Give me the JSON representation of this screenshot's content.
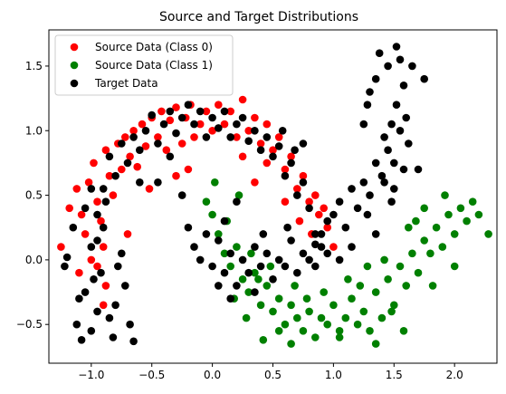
{
  "chart_data": {
    "type": "scatter",
    "title": "Source and Target Distributions",
    "xlabel": "",
    "ylabel": "",
    "xlim": [
      -1.35,
      2.35
    ],
    "ylim": [
      -0.8,
      1.78
    ],
    "xticks": [
      -1.0,
      -0.5,
      0.0,
      0.5,
      1.0,
      1.5,
      2.0
    ],
    "xtick_labels": [
      "−1.0",
      "−0.5",
      "0.0",
      "0.5",
      "1.0",
      "1.5",
      "2.0"
    ],
    "yticks": [
      -0.5,
      0.0,
      0.5,
      1.0,
      1.5
    ],
    "ytick_labels": [
      "−0.5",
      "0.0",
      "0.5",
      "1.0",
      "1.5"
    ],
    "grid": false,
    "legend_position": "top-left",
    "series": [
      {
        "name": "Source Data (Class 0)",
        "color": "#ff0000",
        "marker": "circle",
        "points": [
          [
            -1.25,
            0.1
          ],
          [
            -1.18,
            0.4
          ],
          [
            -1.12,
            0.55
          ],
          [
            -1.08,
            0.35
          ],
          [
            -1.05,
            0.2
          ],
          [
            -1.02,
            0.6
          ],
          [
            -0.98,
            0.75
          ],
          [
            -0.95,
            0.45
          ],
          [
            -0.92,
            0.3
          ],
          [
            -0.9,
            0.1
          ],
          [
            -0.88,
            0.85
          ],
          [
            -0.85,
            0.65
          ],
          [
            -0.82,
            0.5
          ],
          [
            -0.78,
            0.9
          ],
          [
            -0.75,
            0.7
          ],
          [
            -0.72,
            0.95
          ],
          [
            -0.68,
            0.8
          ],
          [
            -0.65,
            1.0
          ],
          [
            -0.62,
            0.72
          ],
          [
            -0.58,
            1.05
          ],
          [
            -0.55,
            0.88
          ],
          [
            -0.5,
            1.1
          ],
          [
            -0.45,
            0.95
          ],
          [
            -0.42,
            1.15
          ],
          [
            -0.38,
            0.85
          ],
          [
            -0.35,
            1.08
          ],
          [
            -0.3,
            1.18
          ],
          [
            -0.25,
            0.9
          ],
          [
            -0.22,
            1.1
          ],
          [
            -0.18,
            1.2
          ],
          [
            -0.15,
            0.95
          ],
          [
            -0.1,
            1.05
          ],
          [
            -0.05,
            1.15
          ],
          [
            0.0,
            1.0
          ],
          [
            0.05,
            1.2
          ],
          [
            0.1,
            1.05
          ],
          [
            0.15,
            1.15
          ],
          [
            0.2,
            0.95
          ],
          [
            0.25,
            1.24
          ],
          [
            0.3,
            1.0
          ],
          [
            0.35,
            1.1
          ],
          [
            0.4,
            0.9
          ],
          [
            0.45,
            1.05
          ],
          [
            0.5,
            0.85
          ],
          [
            0.55,
            0.95
          ],
          [
            0.6,
            0.7
          ],
          [
            0.65,
            0.8
          ],
          [
            0.7,
            0.55
          ],
          [
            0.75,
            0.65
          ],
          [
            0.8,
            0.45
          ],
          [
            0.85,
            0.5
          ],
          [
            0.88,
            0.35
          ],
          [
            0.92,
            0.4
          ],
          [
            0.95,
            0.25
          ],
          [
            1.0,
            0.1
          ],
          [
            -0.3,
            0.65
          ],
          [
            -0.2,
            0.7
          ],
          [
            0.45,
            0.75
          ],
          [
            0.72,
            0.3
          ],
          [
            -1.1,
            -0.1
          ],
          [
            -0.95,
            -0.05
          ],
          [
            -0.88,
            -0.2
          ],
          [
            -0.52,
            0.55
          ],
          [
            0.6,
            0.45
          ],
          [
            0.82,
            0.2
          ],
          [
            -1.0,
            0.0
          ],
          [
            -0.9,
            -0.35
          ],
          [
            -0.7,
            0.2
          ],
          [
            0.35,
            0.6
          ],
          [
            0.25,
            0.8
          ]
        ]
      },
      {
        "name": "Source Data (Class 1)",
        "color": "#008000",
        "marker": "circle",
        "points": [
          [
            -0.05,
            0.45
          ],
          [
            0.0,
            0.35
          ],
          [
            0.05,
            0.2
          ],
          [
            0.1,
            0.05
          ],
          [
            0.15,
            -0.05
          ],
          [
            0.2,
            0.1
          ],
          [
            0.25,
            -0.15
          ],
          [
            0.3,
            -0.25
          ],
          [
            0.35,
            -0.1
          ],
          [
            0.4,
            -0.35
          ],
          [
            0.45,
            -0.2
          ],
          [
            0.5,
            -0.4
          ],
          [
            0.55,
            -0.3
          ],
          [
            0.6,
            -0.5
          ],
          [
            0.65,
            -0.35
          ],
          [
            0.7,
            -0.45
          ],
          [
            0.75,
            -0.55
          ],
          [
            0.8,
            -0.4
          ],
          [
            0.85,
            -0.6
          ],
          [
            0.9,
            -0.45
          ],
          [
            0.95,
            -0.5
          ],
          [
            1.0,
            -0.35
          ],
          [
            1.05,
            -0.55
          ],
          [
            1.1,
            -0.45
          ],
          [
            1.15,
            -0.3
          ],
          [
            1.2,
            -0.5
          ],
          [
            1.25,
            -0.4
          ],
          [
            1.3,
            -0.55
          ],
          [
            1.35,
            -0.25
          ],
          [
            1.4,
            -0.45
          ],
          [
            1.45,
            -0.15
          ],
          [
            1.5,
            -0.35
          ],
          [
            1.55,
            -0.05
          ],
          [
            1.6,
            -0.2
          ],
          [
            1.65,
            0.05
          ],
          [
            1.7,
            -0.1
          ],
          [
            1.75,
            0.15
          ],
          [
            1.8,
            0.05
          ],
          [
            1.85,
            0.25
          ],
          [
            1.9,
            0.1
          ],
          [
            1.95,
            0.35
          ],
          [
            2.0,
            0.2
          ],
          [
            2.05,
            0.4
          ],
          [
            2.1,
            0.3
          ],
          [
            2.15,
            0.45
          ],
          [
            2.2,
            0.35
          ],
          [
            2.28,
            0.2
          ],
          [
            1.92,
            0.5
          ],
          [
            1.75,
            0.4
          ],
          [
            1.62,
            0.25
          ],
          [
            0.02,
            0.6
          ],
          [
            0.22,
            0.5
          ],
          [
            0.12,
            0.3
          ],
          [
            0.32,
            0.05
          ],
          [
            0.48,
            -0.05
          ],
          [
            0.68,
            -0.2
          ],
          [
            0.92,
            -0.25
          ],
          [
            1.12,
            -0.15
          ],
          [
            1.28,
            -0.05
          ],
          [
            1.42,
            0.0
          ],
          [
            0.42,
            -0.62
          ],
          [
            0.65,
            -0.65
          ],
          [
            1.35,
            -0.65
          ],
          [
            1.58,
            -0.55
          ],
          [
            1.05,
            -0.6
          ],
          [
            0.28,
            -0.45
          ],
          [
            0.55,
            -0.55
          ],
          [
            1.82,
            -0.2
          ],
          [
            2.0,
            -0.05
          ],
          [
            1.68,
            0.3
          ],
          [
            0.18,
            -0.3
          ],
          [
            0.38,
            -0.15
          ],
          [
            0.78,
            -0.3
          ],
          [
            1.22,
            -0.2
          ],
          [
            1.48,
            -0.4
          ]
        ]
      },
      {
        "name": "Target Data",
        "color": "#000000",
        "marker": "circle",
        "points": [
          [
            -1.22,
            -0.05
          ],
          [
            -1.2,
            0.02
          ],
          [
            -1.15,
            0.25
          ],
          [
            -1.12,
            -0.5
          ],
          [
            -1.08,
            -0.62
          ],
          [
            -1.1,
            -0.3
          ],
          [
            -1.05,
            -0.25
          ],
          [
            -1.0,
            -0.55
          ],
          [
            -0.98,
            -0.15
          ],
          [
            -0.95,
            -0.4
          ],
          [
            -0.92,
            -0.1
          ],
          [
            -0.9,
            0.25
          ],
          [
            -0.85,
            -0.45
          ],
          [
            -0.82,
            -0.6
          ],
          [
            -0.8,
            -0.35
          ],
          [
            -0.78,
            -0.05
          ],
          [
            -0.75,
            0.05
          ],
          [
            -0.72,
            -0.2
          ],
          [
            -0.68,
            -0.5
          ],
          [
            -0.65,
            -0.63
          ],
          [
            -1.05,
            0.4
          ],
          [
            -1.0,
            0.55
          ],
          [
            -0.95,
            0.15
          ],
          [
            -0.88,
            0.45
          ],
          [
            -0.85,
            0.8
          ],
          [
            -0.8,
            0.65
          ],
          [
            -0.75,
            0.9
          ],
          [
            -0.7,
            0.75
          ],
          [
            -0.65,
            0.95
          ],
          [
            -0.6,
            0.6
          ],
          [
            -0.55,
            1.0
          ],
          [
            -0.5,
            1.12
          ],
          [
            -0.45,
            0.9
          ],
          [
            -0.4,
            1.05
          ],
          [
            -0.35,
            1.15
          ],
          [
            -0.3,
            0.98
          ],
          [
            -0.25,
            1.1
          ],
          [
            -0.2,
            1.2
          ],
          [
            -0.15,
            1.05
          ],
          [
            -0.1,
            1.15
          ],
          [
            -0.05,
            0.95
          ],
          [
            0.0,
            1.1
          ],
          [
            0.05,
            1.02
          ],
          [
            0.1,
            1.15
          ],
          [
            0.15,
            0.95
          ],
          [
            0.2,
            1.05
          ],
          [
            0.25,
            1.1
          ],
          [
            0.3,
            0.92
          ],
          [
            0.35,
            1.0
          ],
          [
            0.4,
            0.85
          ],
          [
            0.45,
            0.95
          ],
          [
            0.5,
            0.8
          ],
          [
            0.55,
            0.88
          ],
          [
            0.6,
            0.65
          ],
          [
            0.65,
            0.75
          ],
          [
            0.7,
            0.5
          ],
          [
            0.75,
            0.6
          ],
          [
            0.8,
            0.4
          ],
          [
            0.85,
            0.2
          ],
          [
            0.9,
            0.1
          ],
          [
            -0.2,
            0.25
          ],
          [
            -0.15,
            0.1
          ],
          [
            -0.1,
            0.0
          ],
          [
            -0.05,
            0.2
          ],
          [
            0.0,
            -0.05
          ],
          [
            0.05,
            0.15
          ],
          [
            0.1,
            -0.1
          ],
          [
            0.15,
            0.05
          ],
          [
            0.2,
            -0.2
          ],
          [
            0.25,
            0.0
          ],
          [
            0.3,
            -0.1
          ],
          [
            0.35,
            0.1
          ],
          [
            0.4,
            -0.05
          ],
          [
            0.45,
            0.05
          ],
          [
            0.5,
            -0.15
          ],
          [
            0.55,
            0.0
          ],
          [
            0.6,
            -0.05
          ],
          [
            0.65,
            0.15
          ],
          [
            0.7,
            -0.1
          ],
          [
            0.75,
            0.05
          ],
          [
            0.8,
            0.0
          ],
          [
            0.85,
            0.12
          ],
          [
            0.9,
            0.2
          ],
          [
            0.95,
            0.3
          ],
          [
            1.0,
            0.35
          ],
          [
            1.05,
            0.45
          ],
          [
            1.1,
            0.25
          ],
          [
            1.15,
            0.55
          ],
          [
            1.2,
            0.4
          ],
          [
            1.25,
            0.6
          ],
          [
            1.3,
            0.5
          ],
          [
            1.35,
            0.75
          ],
          [
            1.4,
            0.65
          ],
          [
            1.42,
            0.95
          ],
          [
            1.45,
            0.85
          ],
          [
            1.48,
            1.05
          ],
          [
            1.5,
            0.75
          ],
          [
            1.52,
            1.2
          ],
          [
            1.55,
            1.0
          ],
          [
            1.58,
            1.35
          ],
          [
            1.6,
            1.1
          ],
          [
            1.62,
            0.9
          ],
          [
            1.55,
            1.55
          ],
          [
            1.52,
            1.65
          ],
          [
            1.45,
            1.5
          ],
          [
            1.38,
            1.6
          ],
          [
            1.35,
            1.4
          ],
          [
            1.3,
            1.3
          ],
          [
            1.28,
            1.2
          ],
          [
            1.25,
            1.05
          ],
          [
            1.42,
            0.6
          ],
          [
            1.5,
            0.55
          ],
          [
            1.58,
            0.7
          ],
          [
            1.48,
            0.45
          ],
          [
            1.65,
            1.5
          ],
          [
            1.7,
            0.7
          ],
          [
            1.75,
            1.4
          ],
          [
            1.35,
            0.2
          ],
          [
            1.28,
            0.35
          ],
          [
            1.15,
            0.1
          ],
          [
            1.05,
            0.0
          ],
          [
            0.95,
            0.05
          ],
          [
            -0.6,
            0.85
          ],
          [
            -0.45,
            0.6
          ],
          [
            -0.35,
            0.8
          ],
          [
            -0.9,
            0.55
          ],
          [
            -0.95,
            0.35
          ],
          [
            -1.0,
            0.1
          ],
          [
            0.2,
            0.45
          ],
          [
            0.1,
            0.3
          ],
          [
            -0.25,
            0.5
          ],
          [
            0.68,
            0.85
          ],
          [
            0.75,
            0.9
          ],
          [
            0.58,
            1.0
          ],
          [
            0.35,
            -0.25
          ],
          [
            0.15,
            -0.3
          ],
          [
            0.05,
            -0.2
          ],
          [
            0.42,
            0.2
          ],
          [
            0.62,
            0.25
          ],
          [
            0.85,
            -0.05
          ]
        ]
      }
    ]
  }
}
